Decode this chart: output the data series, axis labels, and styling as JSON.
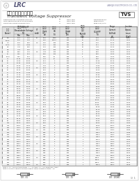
{
  "company": "LRC",
  "company_url": "LANGJIU ELECTRONICS CO., LTD",
  "product_code": "TVS",
  "title_cn": "扥流电压抑制二极管",
  "title_en": "Transient Voltage Suppressor",
  "spec_lines": [
    "REPETITIVE PEAK REVERSE VOLTAGE   VR   SEE TABLE     Clamping:500W+",
    "NON-REPETITIVE PEAK PULSE POWER   PP   SEE TABLE     Diode:500W+",
    "FORWARD SURGE CURRENT MAX.         IF   SEE TABLE     Surge:500A/MAX."
  ],
  "col_headers_row1": [
    "器 件\n(Note)",
    "击穿电压VBR@IT\nBreakdown\nVoltage\nMin   Max",
    "IT",
    "峰值脉冲电流\nPeak Pulse\nCurrent\nIPP",
    "关断电压\nStand Off\nVoltage\nVR",
    "峰值脉冲功率\nPeak Pulse\nPower\nPPP",
    "最大反向漏电流\nMaximum Reverse\nLeakage\nIR@VR",
    "箝位电压\nClamping\nVoltage\nVC@IPP",
    "Surge\nCurrent\n(8x20uS)\nISM",
    "Junction\nCapacitance\nat 1MHz\nCJ"
  ],
  "col_headers_row2": [
    "",
    "Min",
    "Max",
    "(mA)",
    "(A)",
    "(V)",
    "(W)",
    "(uA)",
    "(V)",
    "(A)",
    "(pF x 1E2)"
  ],
  "table_data": [
    [
      "5.0",
      "6.40",
      "7.00",
      "10",
      "5.00",
      "1500",
      "400",
      "71",
      "5.40",
      "10.00",
      "0.001"
    ],
    [
      "6.0Ax",
      "6.45",
      "7.14",
      "",
      "5.80",
      "10000",
      "400",
      "67",
      "5.50",
      "10.10",
      "0.001"
    ],
    [
      "7.0",
      "6.70",
      "8.21",
      "1.0",
      "4.00",
      "500",
      "400",
      "54",
      "6.40",
      "10.20",
      "0.001"
    ],
    [
      "7.5Ax",
      "7.13",
      "7.884",
      "",
      "6.40",
      "500",
      "400",
      "61",
      "6.11",
      "11.11",
      "0.001"
    ],
    [
      "8.2",
      "7.79",
      "8.61",
      "",
      "6.45",
      "200",
      "400",
      "51",
      "7.33",
      "13.20",
      "0.001"
    ],
    [
      "8.5",
      "7.79",
      "9.05",
      "",
      "6.51",
      "150",
      "400",
      "5",
      "7.98",
      "13.40",
      "0.001"
    ],
    [
      "9.0",
      "8.55",
      "9.45",
      "1.0",
      "7.78",
      "100",
      "400",
      "4",
      "8.55",
      "14.50",
      "0.002"
    ],
    [
      "10",
      "9.50",
      "10.5",
      "",
      "8.55",
      "100",
      "400",
      "5",
      "8.55",
      "14.50",
      "0.002"
    ],
    [
      "10Ax",
      "9.50",
      "10.5",
      "",
      "8.55",
      "50",
      "400",
      "5",
      "8.55",
      "14.50",
      "0.002"
    ],
    [
      "11",
      "10.45",
      "11.55",
      "",
      "9.40",
      "10",
      "400",
      "1",
      "9.55",
      "15.60",
      "0.003"
    ],
    [
      "12",
      "11.40",
      "12.60",
      "1.0",
      "10.2",
      "5",
      "400",
      "1",
      "10.20",
      "16.70",
      "0.003"
    ],
    [
      "13",
      "12.35",
      "13.65",
      "",
      "11.1",
      "5",
      "400",
      "1",
      "11.10",
      "17.60",
      "0.003"
    ],
    [
      "14",
      "13.30",
      "14.70",
      "",
      "11.9",
      "5",
      "400",
      "1",
      "11.90",
      "19.10",
      "0.004"
    ],
    [
      "15",
      "14.25",
      "15.75",
      "1.0",
      "12.8",
      "5",
      "400",
      "1",
      "12.80",
      "20.40",
      "0.004"
    ],
    [
      "16",
      "15.20",
      "16.80",
      "",
      "13.6",
      "5",
      "400",
      "1",
      "13.60",
      "21.50",
      "0.004"
    ],
    [
      "17",
      "16.15",
      "17.85",
      "",
      "14.5",
      "5",
      "400",
      "1",
      "14.50",
      "22.80",
      "0.005"
    ],
    [
      "18",
      "17.10",
      "18.90",
      "1.0",
      "15.3",
      "5",
      "400",
      "1",
      "15.30",
      "24.40",
      "0.005"
    ],
    [
      "20",
      "19.00",
      "21.00",
      "",
      "17.1",
      "5",
      "400",
      "1",
      "17.10",
      "27.70",
      "0.005"
    ],
    [
      "22",
      "20.90",
      "23.10",
      "",
      "18.8",
      "5",
      "400",
      "1",
      "18.80",
      "30.60",
      "0.006"
    ],
    [
      "24",
      "22.80",
      "25.20",
      "1.0",
      "20.5",
      "5",
      "400",
      "1",
      "20.50",
      "33.20",
      "0.006"
    ],
    [
      "26",
      "24.70",
      "27.30",
      "",
      "22.2",
      "5",
      "400",
      "1",
      "22.20",
      "35.80",
      "0.007"
    ],
    [
      "28",
      "26.60",
      "29.40",
      "",
      "23.8",
      "5",
      "400",
      "1",
      "23.80",
      "38.90",
      "0.007"
    ],
    [
      "30",
      "28.50",
      "31.50",
      "1.0",
      "25.6",
      "5",
      "400",
      "1",
      "25.60",
      "41.40",
      "0.008"
    ],
    [
      "33",
      "31.35",
      "34.65",
      "",
      "28.2",
      "5",
      "400",
      "1",
      "28.20",
      "45.70",
      "0.008"
    ],
    [
      "36",
      "34.20",
      "37.80",
      "",
      "30.8",
      "5",
      "400",
      "1",
      "30.80",
      "49.90",
      "0.009"
    ],
    [
      "40",
      "38.00",
      "42.00",
      "1.0",
      "34.0",
      "5",
      "400",
      "1",
      "34.00",
      "54.90",
      "0.010"
    ],
    [
      "43",
      "40.85",
      "45.15",
      "",
      "36.6",
      "5",
      "400",
      "1",
      "36.60",
      "59.30",
      "0.011"
    ],
    [
      "47",
      "44.65",
      "49.35",
      "",
      "40.2",
      "5",
      "400",
      "1",
      "40.20",
      "64.80",
      "0.012"
    ],
    [
      "51",
      "48.45",
      "53.55",
      "1.0",
      "43.6",
      "5",
      "400",
      "1",
      "43.60",
      "70.10",
      "0.013"
    ],
    [
      "56",
      "53.20",
      "58.80",
      "",
      "47.8",
      "5",
      "400",
      "1",
      "47.80",
      "77.00",
      "0.014"
    ],
    [
      "60",
      "57.00",
      "63.00",
      "",
      "51.3",
      "5",
      "400",
      "1",
      "51.30",
      "82.40",
      "0.015"
    ],
    [
      "64",
      "60.80",
      "67.20",
      "1.0",
      "54.7",
      "5",
      "400",
      "1",
      "54.70",
      "87.70",
      "0.016"
    ],
    [
      "70",
      "66.50",
      "73.50",
      "",
      "59.9",
      "5",
      "400",
      "1",
      "59.90",
      "96.00",
      "0.018"
    ],
    [
      "75",
      "71.25",
      "78.75",
      "",
      "64.1",
      "5",
      "400",
      "1",
      "64.10",
      "103.0",
      "0.019"
    ],
    [
      "78",
      "74.10",
      "81.90",
      "1.0",
      "66.6",
      "5",
      "400",
      "1",
      "66.60",
      "106.0",
      "0.020"
    ],
    [
      "85",
      "80.75",
      "89.25",
      "",
      "72.6",
      "5",
      "400",
      "1",
      "72.60",
      "117.0",
      "0.022"
    ],
    [
      "90",
      "85.50",
      "94.50",
      "",
      "76.9",
      "5",
      "400",
      "1",
      "76.90",
      "122.0",
      "0.023"
    ],
    [
      "100",
      "95.00",
      "105.0",
      "1.0",
      "85.5",
      "5",
      "400",
      "1",
      "85.50",
      "137.0",
      "0.026"
    ],
    [
      "110",
      "104.5",
      "115.5",
      "",
      "94.0",
      "5",
      "400",
      "1",
      "94.00",
      "152.0",
      "0.028"
    ],
    [
      "120",
      "114.0",
      "126.0",
      "",
      "102.",
      "5",
      "400",
      "1",
      "102.0",
      "165.0",
      "0.031"
    ],
    [
      "130",
      "123.5",
      "136.5",
      "1.0",
      "111.",
      "5",
      "400",
      "1",
      "111.0",
      "179.0",
      "0.033"
    ],
    [
      "150",
      "142.5",
      "157.5",
      "",
      "128.",
      "5",
      "400",
      "1",
      "128.0",
      "207.0",
      "0.038"
    ],
    [
      "160",
      "152.0",
      "168.0",
      "",
      "136.",
      "5",
      "400",
      "1",
      "136.0",
      "219.0",
      "0.041"
    ],
    [
      "170",
      "161.5",
      "178.5",
      "1.0",
      "145.",
      "5",
      "400",
      "1",
      "145.0",
      "234.0",
      "0.043"
    ],
    [
      "180",
      "171.0",
      "189.0",
      "",
      "154.",
      "5",
      "400",
      "1",
      "154.0",
      "246.0",
      "0.046"
    ],
    [
      "200",
      "190.0",
      "210.0",
      "",
      "171.",
      "5",
      "400",
      "1",
      "171.0",
      "274.0",
      "0.051"
    ],
    [
      "220",
      "209.0",
      "231.0",
      "1.0",
      "188.",
      "1",
      "400",
      "1",
      "188.0",
      "328.0",
      "0.057"
    ],
    [
      "250",
      "237.5",
      "262.5",
      "",
      "214.",
      "1",
      "400",
      "1",
      "214.0",
      "344.0",
      "0.065"
    ],
    [
      "300",
      "285.0",
      "315.0",
      "",
      "256.",
      "1",
      "400",
      "1",
      "256.0",
      "414.0",
      "0.078"
    ],
    [
      "350",
      "332.5",
      "367.5",
      "1.0",
      "300.",
      "1",
      "400",
      "1",
      "300.0",
      "482.0",
      "0.091"
    ],
    [
      "400",
      "380.0",
      "420.0",
      "",
      "342.",
      "1",
      "400",
      "1",
      "342.0",
      "548.0",
      "0.104"
    ],
    [
      "440",
      "418.0",
      "462.0",
      "",
      "376.",
      "1",
      "400",
      "1",
      "376.0",
      "602.0",
      "0.114"
    ],
    [
      "480",
      "456.0",
      "504.0",
      "1.0",
      "408.",
      "1",
      "400",
      "1",
      "408.0",
      "659.0",
      "0.125"
    ],
    [
      "500",
      "475.0",
      "525.0",
      "",
      "425.",
      "1",
      "400",
      "1",
      "425.0",
      "684.0",
      "0.130"
    ],
    [
      "540",
      "513.0",
      "567.0",
      "",
      "459.",
      "1",
      "400",
      "1",
      "459.0",
      "745.0",
      "0.141"
    ],
    [
      "600",
      "570.0",
      "630.0",
      "1.0",
      "512.",
      "1",
      "400",
      "1",
      "512.0",
      "820.0",
      "0.156"
    ]
  ],
  "footer_note1": "Note 1: AX = Bi-directional types   A = Ax types, Ax = Uni-directional types",
  "footer_note2": "Note 2: Junction capacitance measured at 1MHz, Reverse voltage = 0V",
  "page_num": "1/  1"
}
